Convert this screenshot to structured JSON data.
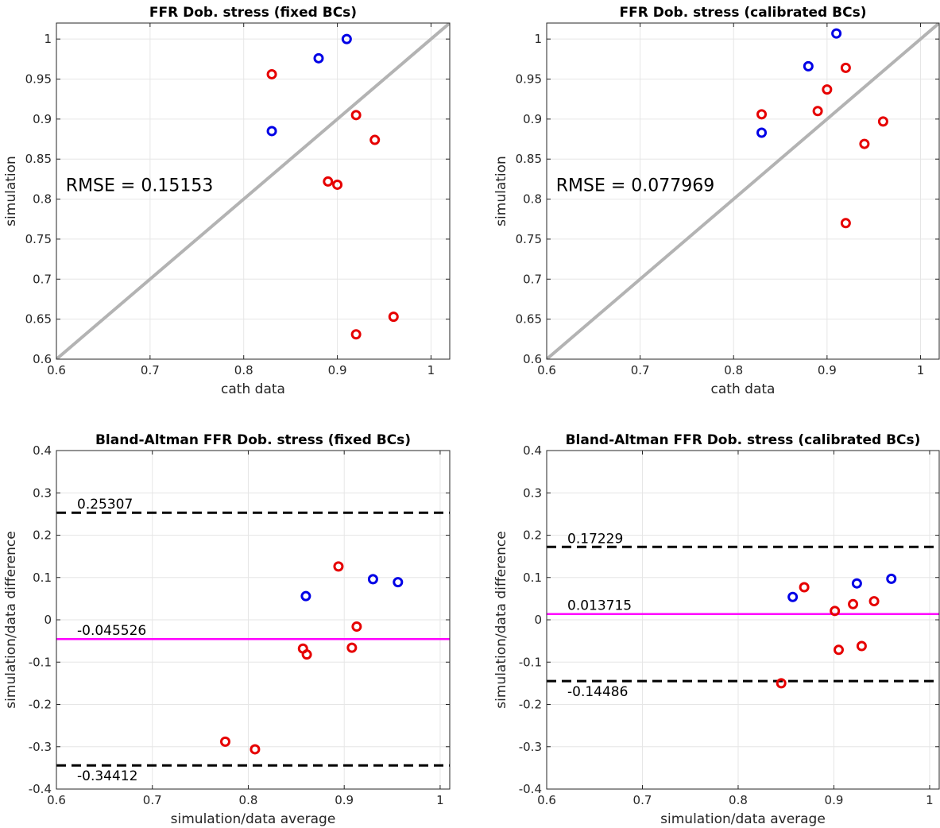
{
  "colors": {
    "group_a": "#0000e6",
    "group_b": "#e60000",
    "identity_line": "#b3b3b3",
    "mean_line": "#ff00ff",
    "limit_line": "#000000",
    "grid": "#e6e6e6",
    "axes": "#262626"
  },
  "chart_data": [
    {
      "type": "scatter",
      "title": "FFR Dob. stress (fixed BCs)",
      "xlabel": "cath data",
      "ylabel": "simulation",
      "xlim": [
        0.6,
        1.02
      ],
      "ylim": [
        0.6,
        1.02
      ],
      "xticks": [
        0.6,
        0.7,
        0.8,
        0.9,
        1
      ],
      "xtick_labels": [
        "0.6",
        "0.7",
        "0.8",
        "0.9",
        "1"
      ],
      "yticks": [
        0.6,
        0.65,
        0.7,
        0.75,
        0.8,
        0.85,
        0.9,
        0.95,
        1
      ],
      "ytick_labels": [
        "0.6",
        "0.65",
        "0.7",
        "0.75",
        "0.8",
        "0.85",
        "0.9",
        "0.95",
        "1"
      ],
      "grid": true,
      "identity_line": true,
      "annotations": [
        {
          "text": "RMSE = 0.15153",
          "x": 0.61,
          "y": 0.81
        }
      ],
      "series": [
        {
          "color": "#0000e6",
          "points": [
            [
              0.91,
              1.0
            ],
            [
              0.88,
              0.976
            ],
            [
              0.83,
              0.885
            ]
          ]
        },
        {
          "color": "#e60000",
          "points": [
            [
              0.83,
              0.956
            ],
            [
              0.92,
              0.905
            ],
            [
              0.94,
              0.874
            ],
            [
              0.89,
              0.822
            ],
            [
              0.9,
              0.818
            ],
            [
              0.96,
              0.653
            ],
            [
              0.92,
              0.631
            ]
          ]
        }
      ],
      "hlines": []
    },
    {
      "type": "scatter",
      "title": "FFR Dob. stress (calibrated BCs)",
      "xlabel": "cath data",
      "ylabel": "simulation",
      "xlim": [
        0.6,
        1.02
      ],
      "ylim": [
        0.6,
        1.02
      ],
      "xticks": [
        0.6,
        0.7,
        0.8,
        0.9,
        1
      ],
      "xtick_labels": [
        "0.6",
        "0.7",
        "0.8",
        "0.9",
        "1"
      ],
      "yticks": [
        0.6,
        0.65,
        0.7,
        0.75,
        0.8,
        0.85,
        0.9,
        0.95,
        1
      ],
      "ytick_labels": [
        "0.6",
        "0.65",
        "0.7",
        "0.75",
        "0.8",
        "0.85",
        "0.9",
        "0.95",
        "1"
      ],
      "grid": true,
      "identity_line": true,
      "annotations": [
        {
          "text": "RMSE = 0.077969",
          "x": 0.61,
          "y": 0.81
        }
      ],
      "series": [
        {
          "color": "#0000e6",
          "points": [
            [
              0.91,
              1.007
            ],
            [
              0.88,
              0.966
            ],
            [
              0.83,
              0.883
            ]
          ]
        },
        {
          "color": "#e60000",
          "points": [
            [
              0.92,
              0.964
            ],
            [
              0.9,
              0.937
            ],
            [
              0.83,
              0.906
            ],
            [
              0.89,
              0.91
            ],
            [
              0.96,
              0.897
            ],
            [
              0.94,
              0.869
            ],
            [
              0.92,
              0.77
            ]
          ]
        }
      ],
      "hlines": []
    },
    {
      "type": "scatter",
      "title": "Bland-Altman FFR Dob. stress (fixed BCs)",
      "xlabel": "simulation/data average",
      "ylabel": "simulation/data difference",
      "xlim": [
        0.6,
        1.01
      ],
      "ylim": [
        -0.4,
        0.4
      ],
      "xticks": [
        0.6,
        0.7,
        0.8,
        0.9,
        1
      ],
      "xtick_labels": [
        "0.6",
        "0.7",
        "0.8",
        "0.9",
        "1"
      ],
      "yticks": [
        -0.4,
        -0.3,
        -0.2,
        -0.1,
        0,
        0.1,
        0.2,
        0.3,
        0.4
      ],
      "ytick_labels": [
        "-0.4",
        "-0.3",
        "-0.2",
        "-0.1",
        "0",
        "0.1",
        "0.2",
        "0.3",
        "0.4"
      ],
      "grid": true,
      "identity_line": false,
      "annotations": [],
      "series": [
        {
          "color": "#0000e6",
          "points": [
            [
              0.86,
              0.056
            ],
            [
              0.93,
              0.096
            ],
            [
              0.956,
              0.089
            ]
          ]
        },
        {
          "color": "#e60000",
          "points": [
            [
              0.894,
              0.126
            ],
            [
              0.913,
              -0.016
            ],
            [
              0.857,
              -0.068
            ],
            [
              0.861,
              -0.082
            ],
            [
              0.908,
              -0.066
            ],
            [
              0.776,
              -0.288
            ],
            [
              0.807,
              -0.306
            ]
          ]
        }
      ],
      "hlines": [
        {
          "y": 0.25307,
          "label": "0.25307",
          "style": "dashed",
          "color": "#000000",
          "label_pos": "above"
        },
        {
          "y": -0.045526,
          "label": "-0.045526",
          "style": "solid",
          "color": "#ff00ff",
          "label_pos": "above"
        },
        {
          "y": -0.34412,
          "label": "-0.34412",
          "style": "dashed",
          "color": "#000000",
          "label_pos": "below"
        }
      ]
    },
    {
      "type": "scatter",
      "title": "Bland-Altman FFR Dob. stress (calibrated BCs)",
      "xlabel": "simulation/data average",
      "ylabel": "simulation/data difference",
      "xlim": [
        0.6,
        1.01
      ],
      "ylim": [
        -0.4,
        0.4
      ],
      "xticks": [
        0.6,
        0.7,
        0.8,
        0.9,
        1
      ],
      "xtick_labels": [
        "0.6",
        "0.7",
        "0.8",
        "0.9",
        "1"
      ],
      "yticks": [
        -0.4,
        -0.3,
        -0.2,
        -0.1,
        0,
        0.1,
        0.2,
        0.3,
        0.4
      ],
      "ytick_labels": [
        "-0.4",
        "-0.3",
        "-0.2",
        "-0.1",
        "0",
        "0.1",
        "0.2",
        "0.3",
        "0.4"
      ],
      "grid": true,
      "identity_line": false,
      "annotations": [],
      "series": [
        {
          "color": "#0000e6",
          "points": [
            [
              0.857,
              0.054
            ],
            [
              0.924,
              0.086
            ],
            [
              0.96,
              0.097
            ]
          ]
        },
        {
          "color": "#e60000",
          "points": [
            [
              0.869,
              0.077
            ],
            [
              0.942,
              0.044
            ],
            [
              0.92,
              0.037
            ],
            [
              0.901,
              0.021
            ],
            [
              0.905,
              -0.071
            ],
            [
              0.929,
              -0.062
            ],
            [
              0.845,
              -0.15
            ]
          ]
        }
      ],
      "hlines": [
        {
          "y": 0.17229,
          "label": "0.17229",
          "style": "dashed",
          "color": "#000000",
          "label_pos": "above"
        },
        {
          "y": 0.013715,
          "label": "0.013715",
          "style": "solid",
          "color": "#ff00ff",
          "label_pos": "above"
        },
        {
          "y": -0.14486,
          "label": "-0.14486",
          "style": "dashed",
          "color": "#000000",
          "label_pos": "below"
        }
      ]
    }
  ]
}
